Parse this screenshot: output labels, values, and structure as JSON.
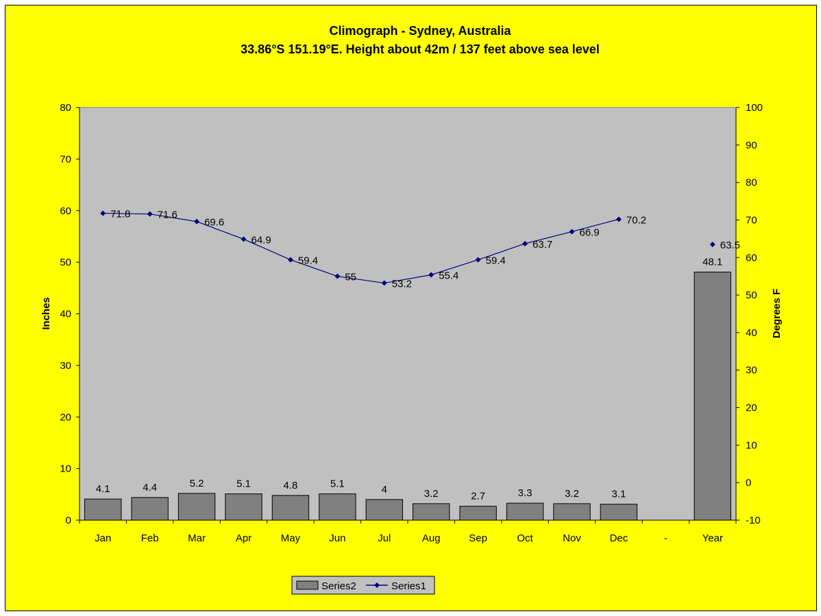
{
  "chart_data": {
    "type": "bar",
    "title": "Climograph - Sydney, Australia",
    "subtitle": "33.86°S 151.19°E. Height about 42m / 137 feet above sea level",
    "categories": [
      "Jan",
      "Feb",
      "Mar",
      "Apr",
      "May",
      "Jun",
      "Jul",
      "Aug",
      "Sep",
      "Oct",
      "Nov",
      "Dec",
      "-",
      "Year"
    ],
    "ylabel": "Inches",
    "y2label": "Degrees F",
    "ylim": [
      0,
      80
    ],
    "y2lim": [
      -10,
      100
    ],
    "yticks": [
      "0",
      "10",
      "20",
      "30",
      "40",
      "50",
      "60",
      "70",
      "80"
    ],
    "y2ticks": [
      "-10",
      "0",
      "10",
      "20",
      "30",
      "40",
      "50",
      "60",
      "70",
      "80",
      "90",
      "100"
    ],
    "grid": false,
    "legend": "bottom",
    "colors": {
      "background": "#ffff00",
      "plot_area": "#c0c0c0",
      "bar": "#808080",
      "line": "#000080"
    },
    "series": [
      {
        "name": "Series2",
        "type": "bar",
        "axis": "left",
        "values": [
          4.1,
          4.4,
          5.2,
          5.1,
          4.8,
          5.1,
          4,
          3.2,
          2.7,
          3.3,
          3.2,
          3.1,
          null,
          48.1
        ],
        "labels": [
          "4.1",
          "4.4",
          "5.2",
          "5.1",
          "4.8",
          "5.1",
          "4",
          "3.2",
          "2.7",
          "3.3",
          "3.2",
          "3.1",
          null,
          "48.1"
        ]
      },
      {
        "name": "Series1",
        "type": "line",
        "axis": "right",
        "values": [
          71.8,
          71.6,
          69.6,
          64.9,
          59.4,
          55,
          53.2,
          55.4,
          59.4,
          63.7,
          66.9,
          70.2,
          null,
          63.5
        ],
        "labels": [
          "71.8",
          "71.6",
          "69.6",
          "64.9",
          "59.4",
          "55",
          "53.2",
          "55.4",
          "59.4",
          "63.7",
          "66.9",
          "70.2",
          null,
          "63.5"
        ]
      }
    ]
  }
}
